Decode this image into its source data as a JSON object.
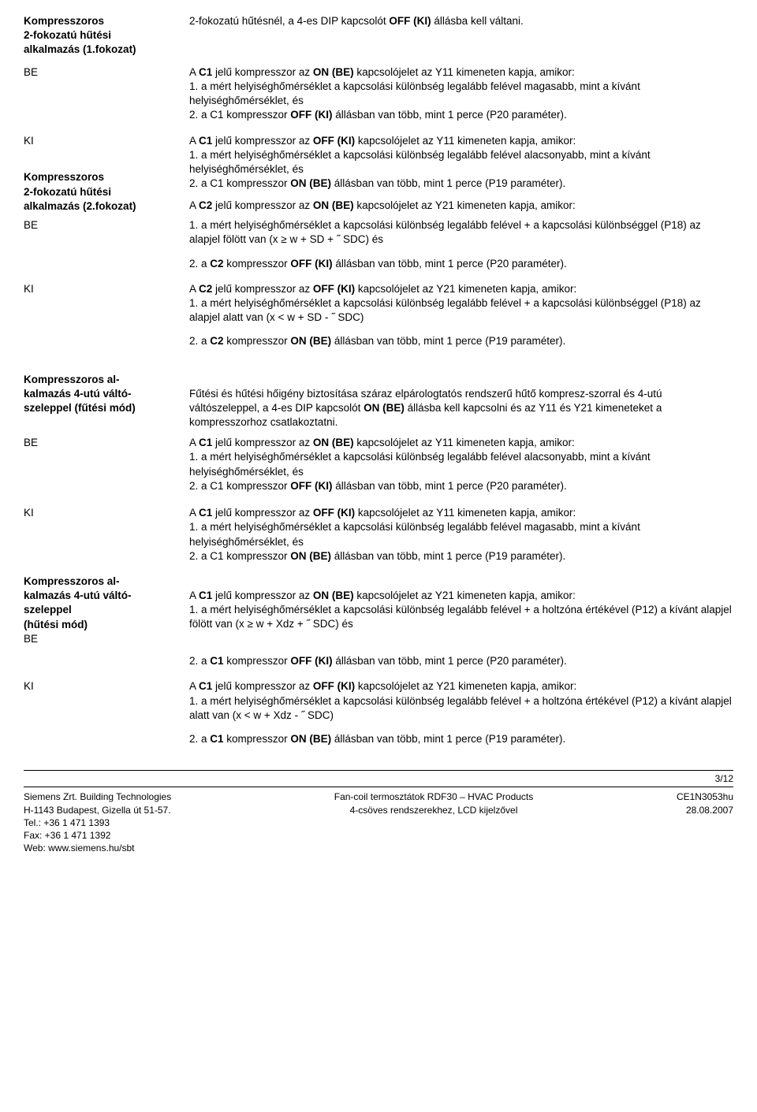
{
  "sections": [
    {
      "label": "Kompresszoros\n2-fokozatú hűtési\nalkalmazás (1.fokozat)",
      "label_bold": true,
      "text": "2-fokozatú hűtésnél, a 4-es DIP kapcsolót <b>OFF (KI)</b> állásba kell váltani.",
      "gap_before": "0"
    },
    {
      "label": "BE",
      "text": "A <b>C1</b> jelű kompresszor az <b>ON (BE)</b> kapcsolójelet az Y11 kimeneten kapja, amikor:<br>1.  a mért helyiséghőmérséklet a kapcsolási különbség legalább felével magasabb, mint a kívánt helyiséghőmérséklet, és<br>2.  a C1 kompresszor <b>OFF (KI)</b> állásban van több, mint 1 perce (P20 paraméter).",
      "gap_before": "4"
    },
    {
      "label": "KI",
      "text": "A <b>C1</b> jelű kompresszor az <b>OFF (KI)</b> kapcsolójelet az Y11 kimeneten kapja, amikor:<br>1.  a mért helyiséghőmérséklet a kapcsolási különbség legalább felével alacsonyabb, mint a kívánt helyiséghőmérséklet, és<br>2.  a C1 kompresszor <b>ON (BE)</b> állásban van több, mint 1 perce (P19 paraméter).",
      "gap_before": "8"
    },
    {
      "label": "Kompresszoros\n2-fokozatú hűtési\nalkalmazás (2.fokozat)",
      "label_bold": true,
      "text": "A <b>C2</b> jelű kompresszor az <b>ON (BE)</b> kapcsolójelet az Y21 kimeneten kapja, amikor:",
      "gap_before": "4",
      "label_vshift": "-36"
    },
    {
      "label": "BE",
      "text": "1.  a mért helyiséghőmérséklet a kapcsolási különbség legalább felével + a kapcsolási különbséggel (P18) az alapjel fölött van (x ≥ w + SD + ˝ SDC) és",
      "gap_before": "0"
    },
    {
      "label": "",
      "text": "2.  a <b>C2</b> kompresszor <b>OFF (KI)</b> állásban van több, mint 1 perce (P20 paraméter).",
      "gap_before": "6"
    },
    {
      "label": "KI",
      "text": "A <b>C2</b> jelű kompresszor az <b>OFF (KI)</b> kapcsolójelet az Y21 kimeneten kapja, amikor:<br>1.  a mért helyiséghőmérséklet a kapcsolási különbség legalább felével + a kapcsolási különbséggel (P18) az alapjel alatt van (x &lt; w + SD  - ˝ SDC)",
      "gap_before": "8"
    },
    {
      "label": "",
      "text": "2.  a <b>C2</b> kompresszor <b>ON (BE)</b> állásban van több, mint 1 perce (P19 paraméter).",
      "gap_before": "6"
    },
    {
      "label": "Kompresszoros al-\nkalmazás 4-utú váltó-\nszeleppel (fűtési mód)",
      "label_bold": true,
      "text": "Fűtési és hűtési hőigény biztosítása száraz elpárologtatós rendszerű hűtő kompresz-szorral és 4-utú váltószeleppel, a 4-es DIP kapcsolót <b>ON (BE)</b> állásba kell kapcsolni és az Y11 és Y21 kimeneteket a kompresszorhoz csatlakoztatni.",
      "gap_before": "24",
      "text_vshift": "18"
    },
    {
      "label": "BE",
      "text": "A <b>C1</b> jelű kompresszor az <b>ON (BE)</b> kapcsolójelet az Y11 kimeneten kapja, amikor:<br>1.  a mért helyiséghőmérséklet a kapcsolási különbség legalább felével alacsonyabb, mint a kívánt helyiséghőmérséklet, és<br>2.  a C1 kompresszor <b>OFF (KI)</b> állásban van több, mint 1 perce (P20 paraméter).",
      "gap_before": "2"
    },
    {
      "label": "KI",
      "text": "A <b>C1</b> jelű kompresszor az <b>OFF (KI)</b> kapcsolójelet az Y11 kimeneten kapja, amikor:<br>1.  a mért helyiséghőmérséklet a kapcsolási különbség legalább felével magasabb, mint a kívánt helyiséghőmérséklet, és<br>2.  a C1 kompresszor <b>ON (BE)</b> állásban van több, mint 1 perce (P19 paraméter).",
      "gap_before": "10"
    },
    {
      "label": "Kompresszoros al-\nkalmazás 4-utú váltó-\nszeleppel\n(hűtési mód)\nBE",
      "label_bold": true,
      "label_last_nonbold": true,
      "text": "A <b>C1</b> jelű kompresszor az <b>ON (BE)</b> kapcsolójelet az Y21 kimeneten kapja, amikor:<br>1.  a mért helyiséghőmérséklet a kapcsolási különbség legalább felével + a holtzóna értékével (P12) a kívánt alapjel fölött van (x ≥ w + Xdz + ˝ SDC) és",
      "gap_before": "8",
      "text_vshift": "18"
    },
    {
      "label": "",
      "text": "2.  a <b>C1</b> kompresszor <b>OFF (KI)</b> állásban van több, mint 1 perce (P20 paraméter).",
      "gap_before": "4"
    },
    {
      "label": "KI",
      "text": "A <b>C1</b> jelű kompresszor az <b>OFF (KI)</b> kapcsolójelet az Y21 kimeneten kapja, amikor:<br>1.  a mért helyiséghőmérséklet a kapcsolási különbség legalább felével + a holtzóna értékével (P12) a kívánt alapjel alatt van (x &lt; w + Xdz  - ˝ SDC)",
      "gap_before": "8"
    },
    {
      "label": "",
      "text": "2.  a <b>C1</b> kompresszor <b>ON (BE)</b> állásban van több, mint 1 perce (P19 paraméter).",
      "gap_before": "6"
    }
  ],
  "page_num": "3/12",
  "footer": {
    "left": "Siemens Zrt. Building Technologies\nH-1143 Budapest, Gizella út 51-57.\nTel.: +36 1 471 1393\nFax: +36 1 471 1392\nWeb: www.siemens.hu/sbt",
    "center": "Fan-coil termosztátok RDF30 – HVAC Products\n4-csöves rendszerekhez, LCD kijelzővel",
    "right": "CE1N3053hu\n28.08.2007"
  }
}
